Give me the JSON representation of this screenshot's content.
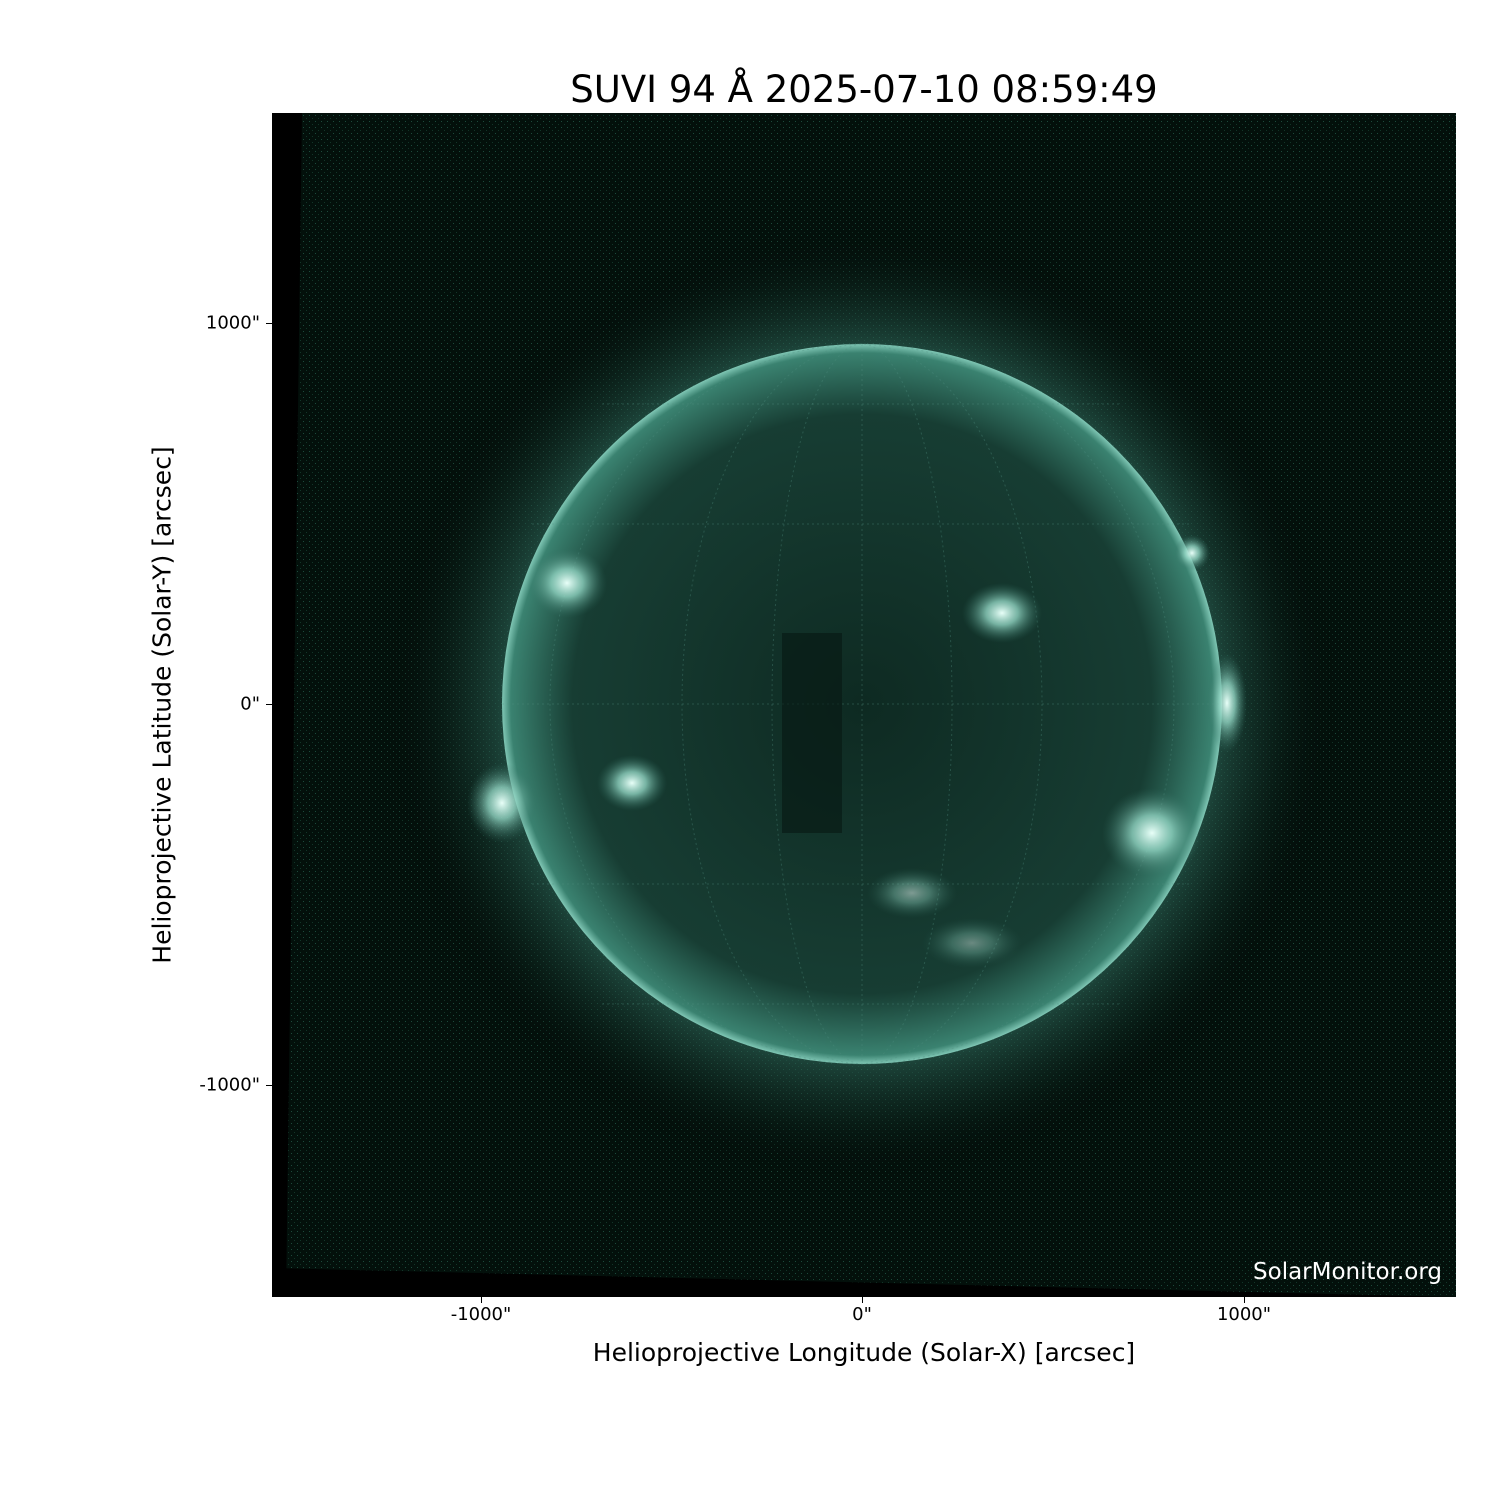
{
  "title": "SUVI 94 Å 2025-07-10 08:59:49",
  "axes": {
    "xlabel": "Helioprojective Longitude (Solar-X) [arcsec]",
    "ylabel": "Helioprojective Latitude (Solar-Y) [arcsec]",
    "xticks": [
      "-1000\"",
      "0\"",
      "1000\""
    ],
    "yticks": [
      "1000\"",
      "0\"",
      "-1000\""
    ],
    "tick_values": [
      -1000,
      0,
      1000
    ]
  },
  "image": {
    "instrument": "SUVI",
    "wavelength": "94 Å",
    "colormap_color": "#6fd0b8",
    "background_color": "#000000"
  },
  "watermark": "SolarMonitor.org"
}
